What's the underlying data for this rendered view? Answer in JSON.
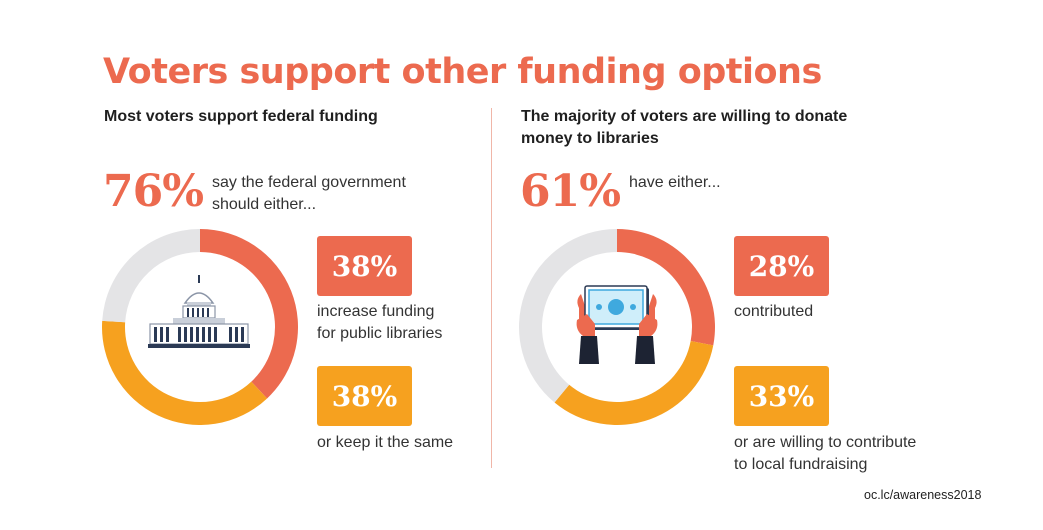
{
  "title": "Voters support other funding options",
  "source": "oc.lc/awareness2018",
  "colors": {
    "coral": "#ec6a4f",
    "orange": "#f6a11f",
    "gray": "#e4e4e6"
  },
  "left": {
    "subtitle": "Most voters support federal funding",
    "headline_pct": "76%",
    "headline_text_line1": "say the federal government",
    "headline_text_line2": "should either...",
    "icon": "capitol-building-icon",
    "badge1": {
      "value": "38%",
      "text_line1": "increase funding",
      "text_line2": "for public libraries"
    },
    "badge2": {
      "value": "38%",
      "text_line1": "or keep it the same"
    }
  },
  "right": {
    "subtitle_line1": "The majority of voters are willing to donate",
    "subtitle_line2": "money to libraries",
    "headline_pct": "61%",
    "headline_text_line1": "have either...",
    "icon": "hands-holding-money-icon",
    "badge1": {
      "value": "28%",
      "text_line1": "contributed"
    },
    "badge2": {
      "value": "33%",
      "text_line1": "or are willing to contribute",
      "text_line2": "to local fundraising"
    }
  },
  "chart_data": [
    {
      "type": "pie",
      "categories": [
        "increase funding for public libraries",
        "or keep it the same",
        "other"
      ],
      "values": [
        38,
        38,
        24
      ],
      "colors": [
        "#ec6a4f",
        "#f6a11f",
        "#e4e4e6"
      ]
    },
    {
      "type": "pie",
      "categories": [
        "contributed",
        "or are willing to contribute to local fundraising",
        "other"
      ],
      "values": [
        28,
        33,
        39
      ],
      "colors": [
        "#ec6a4f",
        "#f6a11f",
        "#e4e4e6"
      ]
    }
  ]
}
